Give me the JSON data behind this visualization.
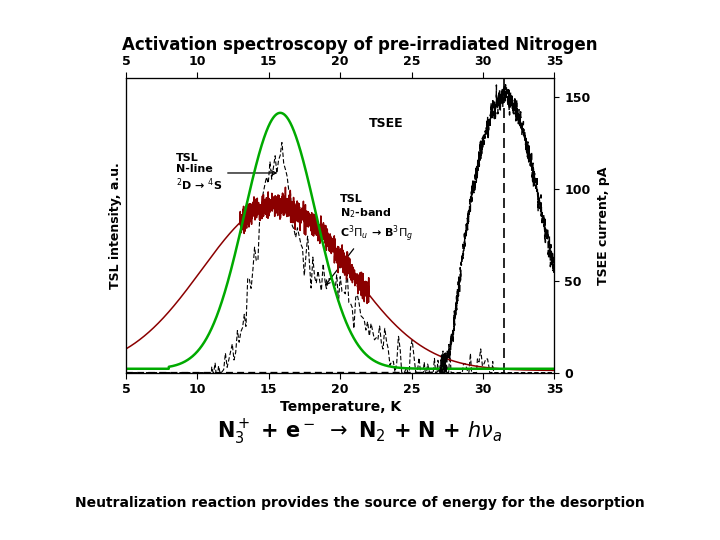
{
  "title": "Activation spectroscopy of pre-irradiated Nitrogen",
  "title_bg": "#aaf0c8",
  "xlabel": "Temperature, K",
  "ylabel_left": "TSL intensity, a.u.",
  "ylabel_right": "TSEE current, pA",
  "xlim": [
    5,
    35
  ],
  "ylim_left": [
    0,
    1.15
  ],
  "ylim_right": [
    0,
    160
  ],
  "yticks_right": [
    0,
    50,
    100,
    150
  ],
  "xticks": [
    5,
    10,
    15,
    20,
    25,
    30,
    35
  ],
  "bottom_bg": "#aaf0c8",
  "footnote": "Neutralization reaction provides the source of energy for the desorption",
  "green_color": "#00aa00",
  "darkred_color": "#8b0000",
  "dashed_color": "#000000",
  "tsee_line_color": "#000000"
}
